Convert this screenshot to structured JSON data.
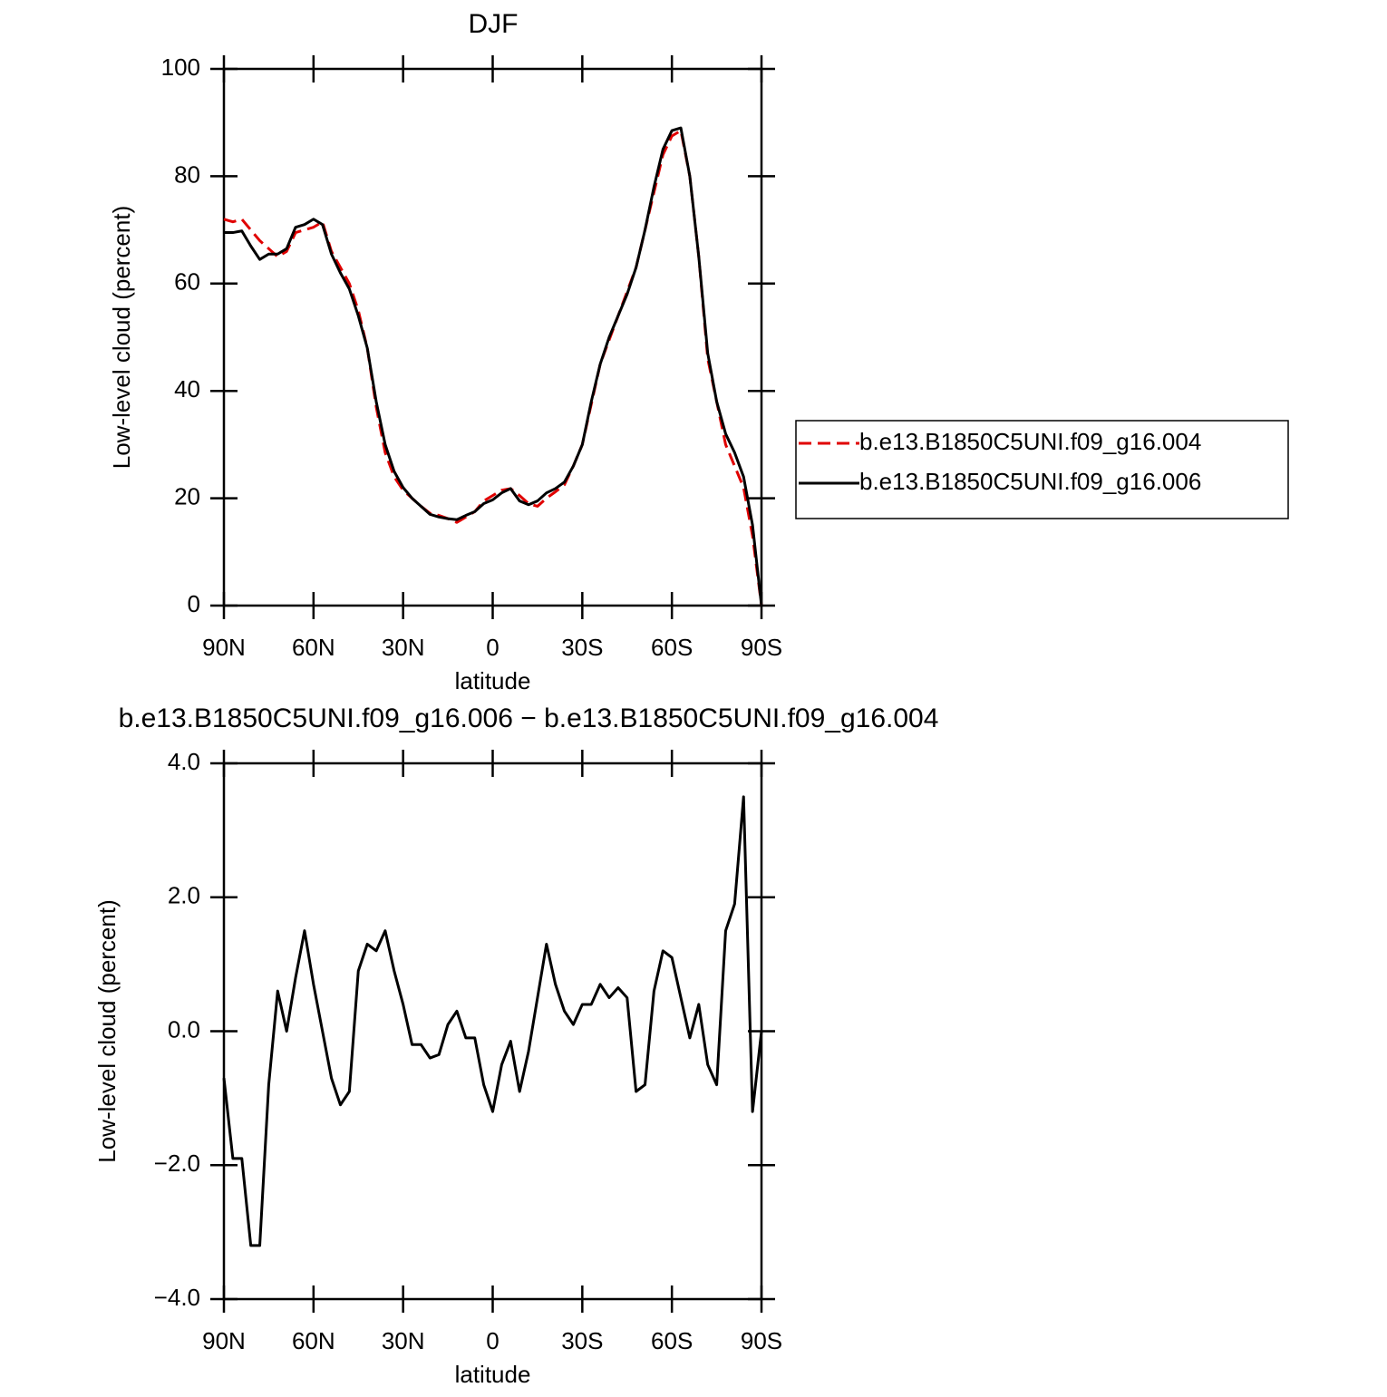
{
  "chart_data": [
    {
      "type": "line",
      "title": "DJF",
      "xlabel": "latitude",
      "ylabel": "Low-level cloud (percent)",
      "x": [
        90,
        87,
        84,
        81,
        78,
        75,
        72,
        69,
        66,
        63,
        60,
        57,
        54,
        51,
        48,
        45,
        42,
        39,
        36,
        33,
        30,
        27,
        24,
        21,
        18,
        15,
        12,
        9,
        6,
        3,
        0,
        -3,
        -6,
        -9,
        -12,
        -15,
        -18,
        -21,
        -24,
        -27,
        -30,
        -33,
        -36,
        -39,
        -42,
        -45,
        -48,
        -51,
        -54,
        -57,
        -60,
        -63,
        -66,
        -69,
        -72,
        -75,
        -78,
        -81,
        -84,
        -87,
        -90
      ],
      "series": [
        {
          "name": "b.e13.B1850C5UNI.f09_g16.004",
          "color": "#e00000",
          "line_style": "dashed",
          "values": [
            72,
            71.5,
            72,
            70,
            68,
            66.5,
            65,
            66,
            69.5,
            70,
            70.5,
            71.5,
            66,
            63,
            60,
            55,
            48,
            37,
            28.5,
            24,
            21.5,
            20,
            18.5,
            17.2,
            16.8,
            16.2,
            15.5,
            16.5,
            17.5,
            19.5,
            20.5,
            21.5,
            21.8,
            20.5,
            19,
            18.5,
            20,
            21.2,
            22.5,
            26,
            30,
            37.5,
            45,
            49.5,
            54,
            58.5,
            63,
            70,
            77,
            84,
            87.5,
            88.5,
            80,
            65,
            46,
            38,
            30,
            26,
            22,
            13,
            0
          ]
        },
        {
          "name": "b.e13.B1850C5UNI.f09_g16.006",
          "color": "#000000",
          "line_style": "solid",
          "values": [
            69.5,
            69.5,
            69.8,
            67,
            64.5,
            65.5,
            65.5,
            66.5,
            70.5,
            71,
            72,
            71,
            65.5,
            62,
            59,
            54,
            48,
            38,
            30,
            25,
            22,
            20,
            18.5,
            17,
            16.5,
            16.2,
            16,
            16.8,
            17.5,
            19,
            19.7,
            21,
            21.8,
            19.5,
            18.8,
            19.5,
            21,
            21.8,
            23,
            26,
            30,
            38,
            45,
            50,
            54,
            58,
            63,
            70,
            78,
            85,
            88.5,
            89,
            80,
            65,
            47,
            38,
            32,
            28.5,
            24,
            15,
            0
          ]
        }
      ],
      "xlim": [
        90,
        -90
      ],
      "xticks": [
        {
          "value": 90,
          "label": "90N"
        },
        {
          "value": 60,
          "label": "60N"
        },
        {
          "value": 30,
          "label": "30N"
        },
        0,
        {
          "value": -30,
          "label": "30S"
        },
        {
          "value": -60,
          "label": "60S"
        },
        {
          "value": -90,
          "label": "90S"
        }
      ],
      "ylim": [
        0,
        100
      ],
      "yticks": [
        0,
        20,
        40,
        60,
        80,
        100
      ],
      "legend": "right"
    },
    {
      "type": "line",
      "title": "b.e13.B1850C5UNI.f09_g16.006 − b.e13.B1850C5UNI.f09_g16.004",
      "xlabel": "latitude",
      "ylabel": "Low-level cloud (percent)",
      "x": [
        90,
        87,
        84,
        81,
        78,
        75,
        72,
        69,
        66,
        63,
        60,
        57,
        54,
        51,
        48,
        45,
        42,
        39,
        36,
        33,
        30,
        27,
        24,
        21,
        18,
        15,
        12,
        9,
        6,
        3,
        0,
        -3,
        -6,
        -9,
        -12,
        -15,
        -18,
        -21,
        -24,
        -27,
        -30,
        -33,
        -36,
        -39,
        -42,
        -45,
        -48,
        -51,
        -54,
        -57,
        -60,
        -63,
        -66,
        -69,
        -72,
        -75,
        -78,
        -81,
        -84,
        -87,
        -90
      ],
      "series": [
        {
          "color": "#000000",
          "line_style": "solid",
          "values": [
            -0.7,
            -1.9,
            -1.9,
            -3.2,
            -3.2,
            -0.8,
            0.6,
            0,
            0.8,
            1.5,
            0.7,
            0,
            -0.7,
            -1.1,
            -0.9,
            0.9,
            1.3,
            1.2,
            1.5,
            0.9,
            0.4,
            -0.2,
            -0.2,
            -0.4,
            -0.35,
            0.1,
            0.3,
            -0.1,
            -0.1,
            -0.8,
            -1.2,
            -0.5,
            -0.15,
            -0.9,
            -0.3,
            0.5,
            1.3,
            0.7,
            0.3,
            0.1,
            0.4,
            0.4,
            0.7,
            0.5,
            0.65,
            0.5,
            -0.9,
            -0.8,
            0.6,
            1.2,
            1.1,
            0.5,
            -0.1,
            0.4,
            -0.5,
            -0.8,
            1.5,
            1.9,
            3.5,
            -1.2,
            0
          ]
        }
      ],
      "xlim": [
        90,
        -90
      ],
      "xticks": [
        {
          "value": 90,
          "label": "90N"
        },
        {
          "value": 60,
          "label": "60N"
        },
        {
          "value": 30,
          "label": "30N"
        },
        0,
        {
          "value": -30,
          "label": "30S"
        },
        {
          "value": -60,
          "label": "60S"
        },
        {
          "value": -90,
          "label": "90S"
        }
      ],
      "ylim": [
        -4,
        4
      ],
      "yticks": [
        {
          "value": -4,
          "label": "−4.0"
        },
        {
          "value": -2,
          "label": "−2.0"
        },
        {
          "value": 0,
          "label": "0.0"
        },
        {
          "value": 2,
          "label": "2.0"
        },
        {
          "value": 4,
          "label": "4.0"
        }
      ]
    }
  ]
}
